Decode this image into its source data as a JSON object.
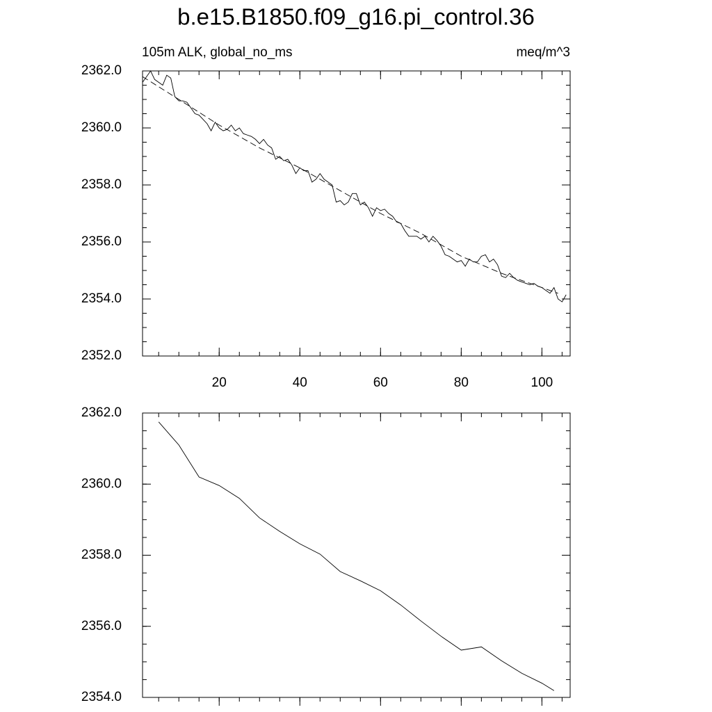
{
  "chart_data": [
    {
      "type": "line",
      "title": "b.e15.B1850.f09_g16.pi_control.36",
      "subtitle_left": "105m ALK, global_no_ms",
      "subtitle_right": "meq/m^3",
      "x": [
        1,
        2,
        3,
        4,
        5,
        6,
        7,
        8,
        9,
        10,
        11,
        12,
        13,
        14,
        15,
        16,
        17,
        18,
        19,
        20,
        21,
        22,
        23,
        24,
        25,
        26,
        27,
        28,
        29,
        30,
        31,
        32,
        33,
        34,
        35,
        36,
        37,
        38,
        39,
        40,
        41,
        42,
        43,
        44,
        45,
        46,
        47,
        48,
        49,
        50,
        51,
        52,
        53,
        54,
        55,
        56,
        57,
        58,
        59,
        60,
        61,
        62,
        63,
        64,
        65,
        66,
        67,
        68,
        69,
        70,
        71,
        72,
        73,
        74,
        75,
        76,
        77,
        78,
        79,
        80,
        81,
        82,
        83,
        84,
        85,
        86,
        87,
        88,
        89,
        90,
        91,
        92,
        93,
        94,
        95,
        96,
        97,
        98,
        99,
        100,
        101,
        102,
        103,
        104,
        105,
        106
      ],
      "series": [
        {
          "color": "#000000",
          "values": [
            2361.6,
            2361.8,
            2362.0,
            2361.7,
            2361.6,
            2361.5,
            2361.85,
            2361.75,
            2361.1,
            2360.95,
            2360.95,
            2360.9,
            2360.7,
            2360.5,
            2360.45,
            2360.3,
            2360.15,
            2359.9,
            2360.2,
            2360.0,
            2359.9,
            2359.95,
            2360.1,
            2359.9,
            2360.0,
            2359.8,
            2359.75,
            2359.7,
            2359.6,
            2359.45,
            2359.6,
            2359.4,
            2359.3,
            2358.9,
            2359.0,
            2358.85,
            2358.9,
            2358.7,
            2358.4,
            2358.6,
            2358.5,
            2358.5,
            2358.1,
            2358.2,
            2358.4,
            2358.2,
            2358.1,
            2358.0,
            2357.4,
            2357.45,
            2357.3,
            2357.4,
            2357.7,
            2357.7,
            2357.3,
            2357.4,
            2357.2,
            2356.9,
            2357.2,
            2357.1,
            2357.15,
            2357.0,
            2356.9,
            2356.7,
            2356.65,
            2356.4,
            2356.2,
            2356.2,
            2356.2,
            2356.1,
            2356.2,
            2356.0,
            2356.2,
            2356.05,
            2355.85,
            2355.55,
            2355.5,
            2355.4,
            2355.3,
            2355.35,
            2355.15,
            2355.4,
            2355.3,
            2355.3,
            2355.5,
            2355.55,
            2355.3,
            2355.4,
            2355.2,
            2354.8,
            2354.75,
            2354.9,
            2354.75,
            2354.65,
            2354.6,
            2354.55,
            2354.5,
            2354.55,
            2354.45,
            2354.4,
            2354.3,
            2354.2,
            2354.4,
            2354.0,
            2353.9,
            2354.15
          ]
        },
        {
          "color": "#000000",
          "dashed": true,
          "x": [
            1,
            10,
            20,
            30,
            40,
            50,
            60,
            70,
            80,
            90,
            100,
            104
          ],
          "values": [
            2361.8,
            2361.0,
            2360.1,
            2359.3,
            2358.6,
            2357.8,
            2357.0,
            2356.3,
            2355.5,
            2354.9,
            2354.4,
            2354.2
          ]
        }
      ],
      "xlim": [
        1,
        107
      ],
      "xticks": [
        20,
        40,
        60,
        80,
        100
      ],
      "ylim": [
        2352,
        2362
      ],
      "yticks": [
        {
          "value": 2352,
          "label": "2352.0"
        },
        {
          "value": 2354,
          "label": "2354.0"
        },
        {
          "value": 2356,
          "label": "2356.0"
        },
        {
          "value": 2358,
          "label": "2358.0"
        },
        {
          "value": 2360,
          "label": "2360.0"
        },
        {
          "value": 2362,
          "label": "2362.0"
        }
      ]
    },
    {
      "type": "line",
      "x": [
        5,
        10,
        15,
        20,
        25,
        30,
        35,
        40,
        45,
        50,
        55,
        60,
        65,
        70,
        75,
        80,
        85,
        90,
        95,
        100,
        103
      ],
      "series": [
        {
          "color": "#000000",
          "values": [
            2361.75,
            2361.1,
            2360.2,
            2359.96,
            2359.6,
            2359.05,
            2358.67,
            2358.32,
            2358.03,
            2357.54,
            2357.28,
            2357.0,
            2356.6,
            2356.15,
            2355.72,
            2355.33,
            2355.42,
            2355.03,
            2354.68,
            2354.4,
            2354.19
          ]
        }
      ],
      "xlim": [
        1,
        107
      ],
      "ylim": [
        2354,
        2362
      ],
      "yticks": [
        {
          "value": 2354,
          "label": "2354.0"
        },
        {
          "value": 2356,
          "label": "2356.0"
        },
        {
          "value": 2358,
          "label": "2358.0"
        },
        {
          "value": 2360,
          "label": "2360.0"
        },
        {
          "value": 2362,
          "label": "2362.0"
        }
      ]
    }
  ]
}
